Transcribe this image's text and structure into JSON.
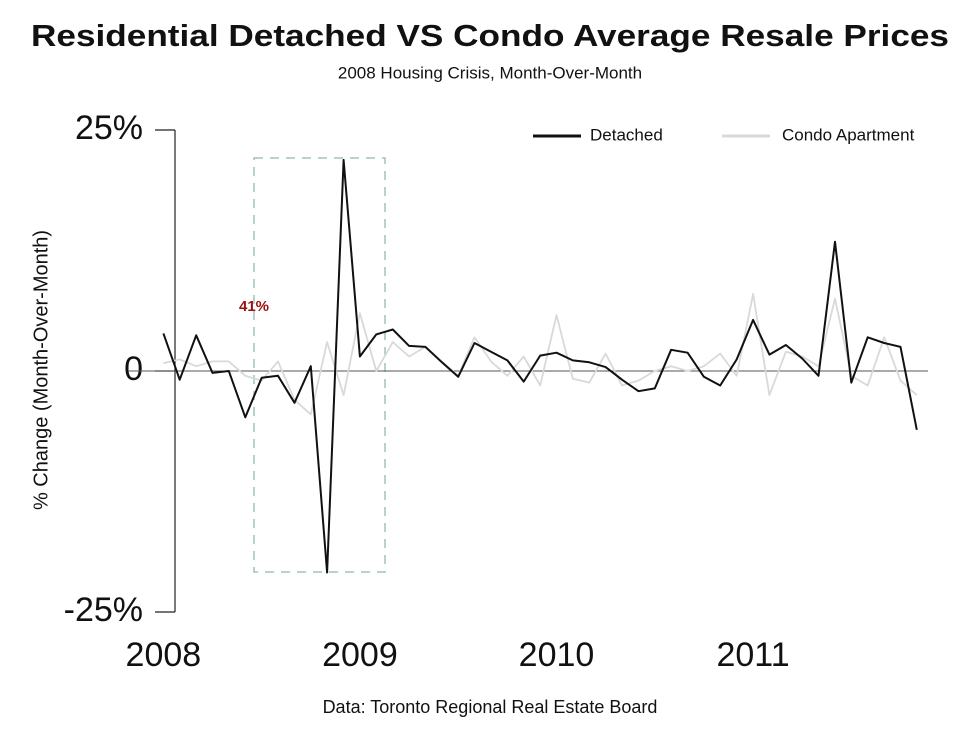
{
  "chart_data": {
    "type": "line",
    "title": "Residential Detached VS Condo Average Resale Prices",
    "subtitle": "2008 Housing Crisis, Month-Over-Month",
    "y_label": "% Change (Month-Over-Month)",
    "source": "Data: Toronto Regional Real Estate Board",
    "annotation": "41%",
    "x": [
      2008,
      2008.083,
      2008.167,
      2008.25,
      2008.333,
      2008.417,
      2008.5,
      2008.583,
      2008.667,
      2008.75,
      2008.833,
      2008.917,
      2009,
      2009.083,
      2009.167,
      2009.25,
      2009.333,
      2009.417,
      2009.5,
      2009.583,
      2009.667,
      2009.75,
      2009.833,
      2009.917,
      2010,
      2010.083,
      2010.167,
      2010.25,
      2010.333,
      2010.417,
      2010.5,
      2010.583,
      2010.667,
      2010.75,
      2010.833,
      2010.917,
      2011,
      2011.083,
      2011.167,
      2011.25,
      2011.333,
      2011.417,
      2011.5,
      2011.583,
      2011.667,
      2011.75,
      2011.833
    ],
    "series": [
      {
        "name": "Detached",
        "color": "#111111",
        "values": [
          3.9,
          -0.9,
          3.7,
          -0.2,
          0,
          -4.8,
          -0.7,
          -0.5,
          -3.3,
          0.5,
          -20.9,
          21.9,
          1.5,
          3.8,
          4.3,
          2.6,
          2.5,
          0.9,
          -0.6,
          2.9,
          2.0,
          1.1,
          -1.1,
          1.6,
          1.9,
          1.1,
          0.9,
          0.4,
          -0.9,
          -2.1,
          -1.8,
          2.2,
          1.9,
          -0.6,
          -1.5,
          1.2,
          5.3,
          1.7,
          2.7,
          1.3,
          -0.5,
          13.4,
          -1.2,
          3.5,
          2.9,
          2.5,
          -6.1
        ]
      },
      {
        "name": "Condo Apartment",
        "color": "#d9d9d9",
        "values": [
          0.8,
          1.2,
          0.5,
          1.0,
          1.0,
          -0.5,
          -1.0,
          1.0,
          -3.0,
          -4.5,
          3.0,
          -2.5,
          6.0,
          0,
          3.0,
          1.5,
          2.5,
          1.0,
          -0.5,
          3.5,
          1.0,
          -0.5,
          1.5,
          -1.5,
          5.8,
          -0.8,
          -1.2,
          1.8,
          -1.5,
          -1.0,
          0,
          0.5,
          0,
          0.5,
          1.8,
          -0.5,
          8.0,
          -2.5,
          2.0,
          1.5,
          0.5,
          7.5,
          -0.5,
          -1.5,
          3.5,
          -1.0,
          -2.5
        ]
      }
    ],
    "xlim": [
      2007.82,
      2011.89
    ],
    "xticks": [
      2008,
      2009,
      2010,
      2011
    ],
    "ylim": [
      -25,
      25
    ],
    "yticks": [
      {
        "value": 25,
        "label": "25%"
      },
      0,
      {
        "value": -25,
        "label": "-25%"
      }
    ],
    "legend": "top-right"
  }
}
